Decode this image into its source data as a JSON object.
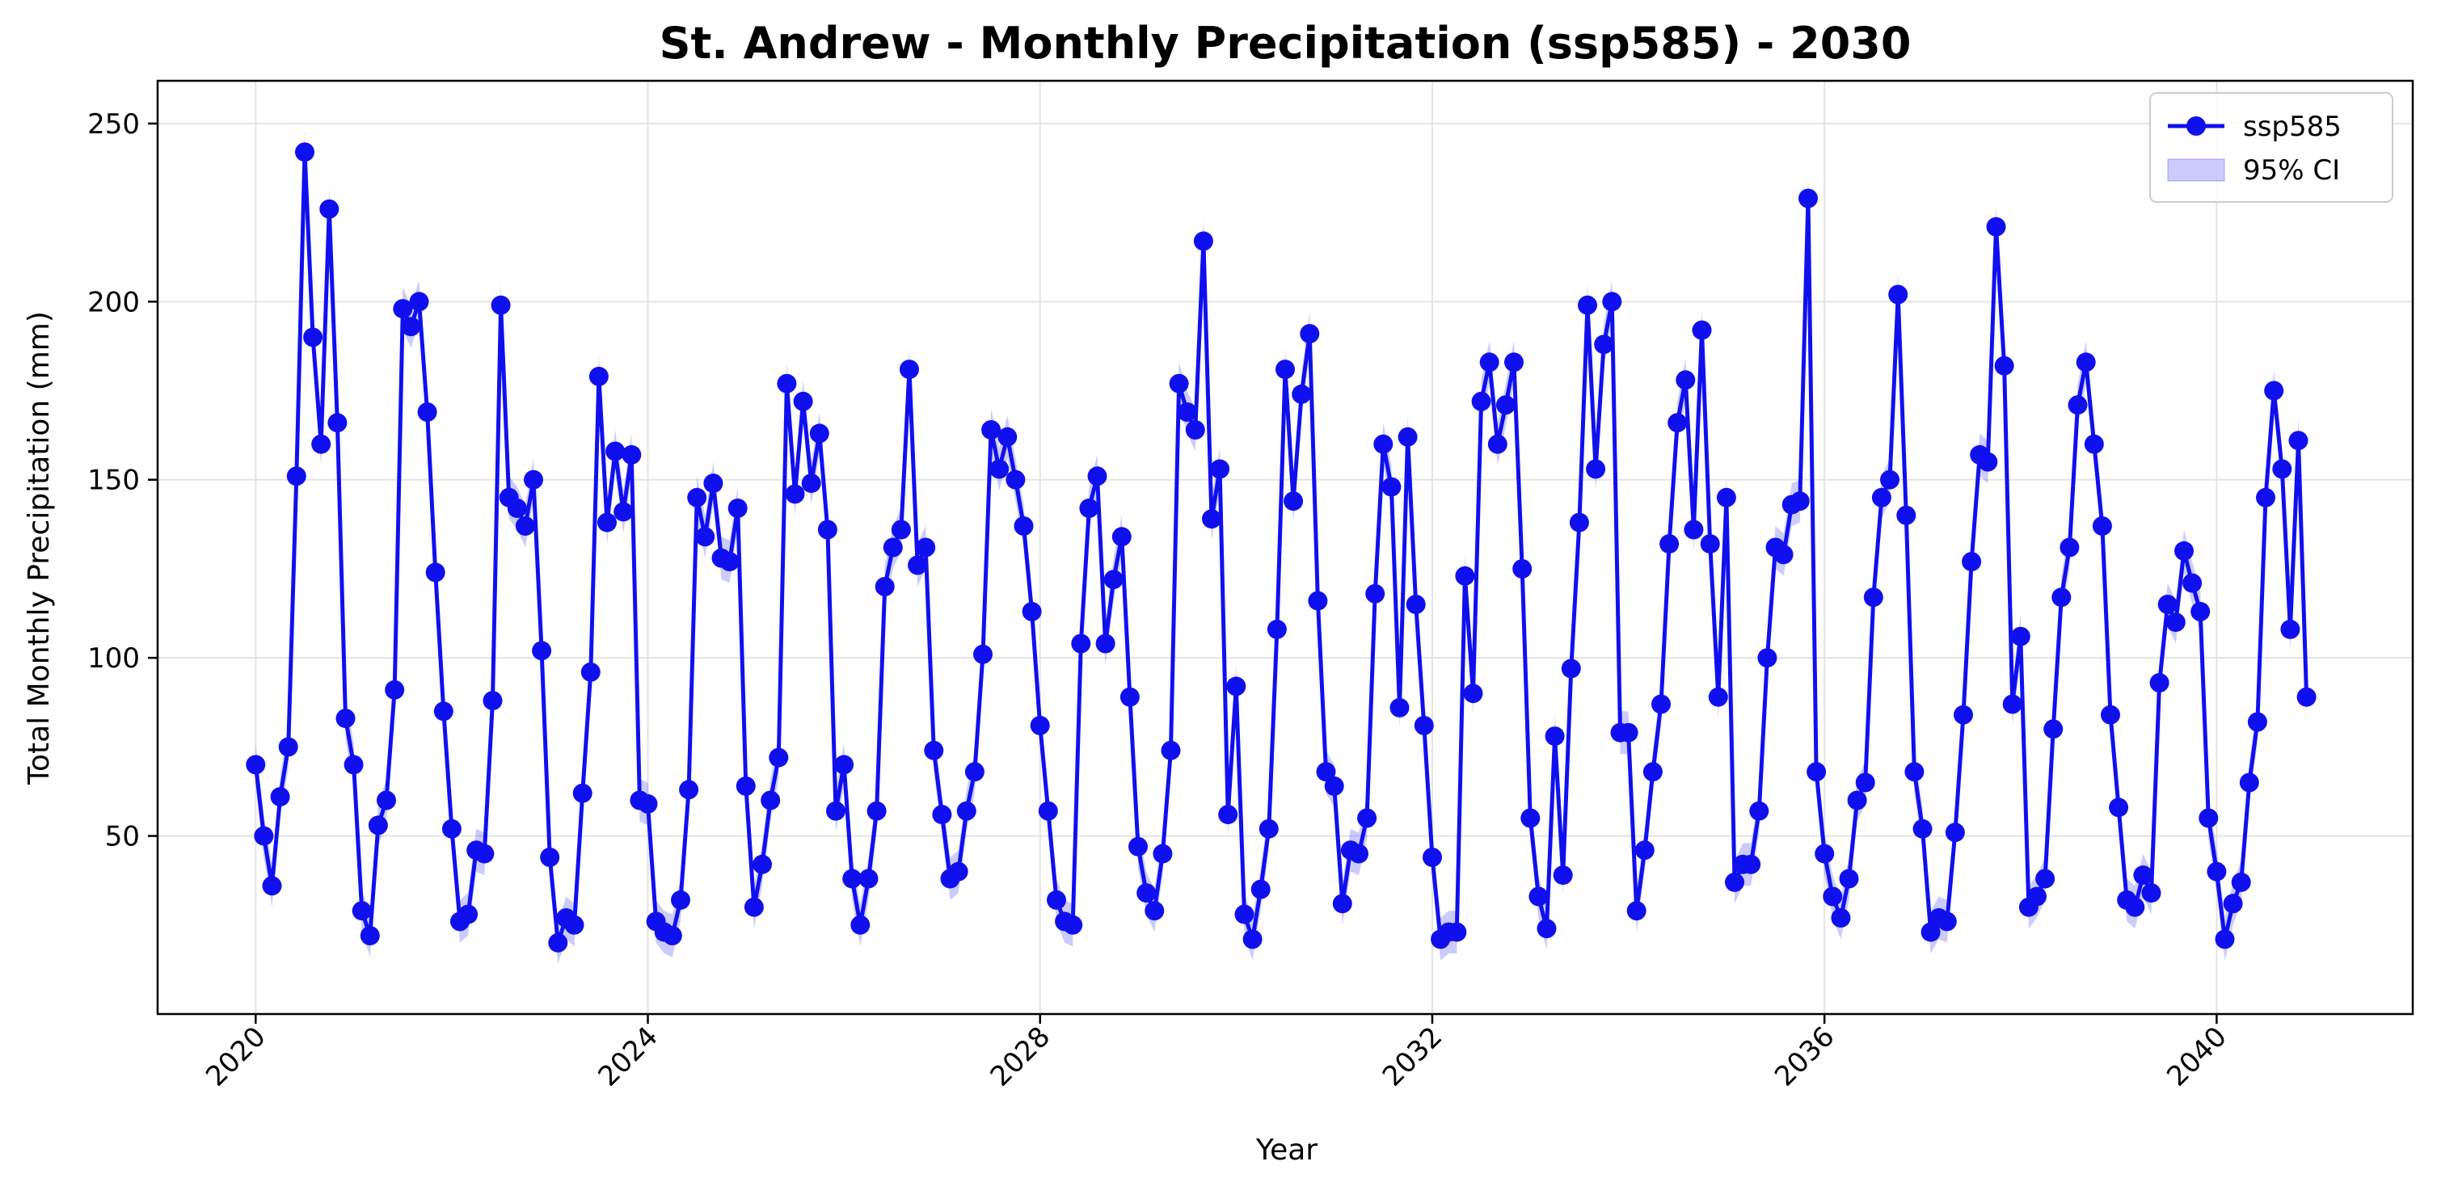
{
  "chart_data": {
    "type": "line",
    "title": "St. Andrew - Monthly Precipitation (ssp585) - 2030",
    "xlabel": "Year",
    "ylabel": "Total Monthly Precipitation (mm)",
    "xlim": [
      "2019-01-01",
      "2042-01-01"
    ],
    "ylim": [
      0,
      262
    ],
    "x_ticks": [
      "2020",
      "2024",
      "2028",
      "2032",
      "2036",
      "2040"
    ],
    "y_ticks": [
      50,
      100,
      150,
      200,
      250
    ],
    "grid": true,
    "legend_position": "top-right",
    "x_start": "2020-01",
    "x_step": "month",
    "series": [
      {
        "name": "ssp585",
        "color": "#1010ee",
        "marker": "circle",
        "values": [
          70,
          50,
          36,
          61,
          75,
          151,
          242,
          190,
          160,
          226,
          166,
          83,
          70,
          29,
          22,
          53,
          60,
          91,
          198,
          193,
          200,
          169,
          124,
          85,
          52,
          26,
          28,
          46,
          45,
          88,
          199,
          145,
          142,
          137,
          150,
          102,
          44,
          20,
          27,
          25,
          62,
          96,
          179,
          138,
          158,
          141,
          157,
          60,
          59,
          26,
          23,
          22,
          32,
          63,
          145,
          134,
          149,
          128,
          127,
          142,
          64,
          30,
          42,
          60,
          72,
          177,
          146,
          172,
          149,
          163,
          136,
          57,
          70,
          38,
          25,
          38,
          57,
          120,
          131,
          136,
          181,
          126,
          131,
          74,
          56,
          38,
          40,
          57,
          68,
          101,
          164,
          153,
          162,
          150,
          137,
          113,
          81,
          57,
          32,
          26,
          25,
          104,
          142,
          151,
          104,
          122,
          134,
          89,
          47,
          34,
          29,
          45,
          74,
          177,
          169,
          164,
          217,
          139,
          153,
          56,
          92,
          28,
          21,
          35,
          52,
          108,
          181,
          144,
          174,
          191,
          116,
          68,
          64,
          31,
          46,
          45,
          55,
          118,
          160,
          148,
          86,
          162,
          115,
          81,
          44,
          21,
          23,
          23,
          123,
          90,
          172,
          183,
          160,
          171,
          183,
          125,
          55,
          33,
          24,
          78,
          39,
          97,
          138,
          199,
          153,
          188,
          200,
          79,
          79,
          29,
          46,
          68,
          87,
          132,
          166,
          178,
          136,
          192,
          132,
          89,
          145,
          37,
          42,
          42,
          57,
          100,
          131,
          129,
          143,
          144,
          229,
          68,
          45,
          33,
          27,
          38,
          60,
          65,
          117,
          145,
          150,
          202,
          140,
          68,
          52,
          23,
          27,
          26,
          51,
          84,
          127,
          157,
          155,
          221,
          182,
          87,
          106,
          30,
          33,
          38,
          80,
          117,
          131,
          171,
          183,
          160,
          137,
          84,
          58,
          32,
          30,
          39,
          34,
          93,
          115,
          110,
          130,
          121,
          113,
          55,
          40,
          21,
          31,
          37,
          65,
          82,
          145,
          175,
          153,
          108,
          161,
          89
        ]
      }
    ],
    "confidence_band": {
      "label": "95% CI",
      "color": "#0000ee",
      "opacity": 0.2,
      "half_width_mm": 6
    }
  }
}
